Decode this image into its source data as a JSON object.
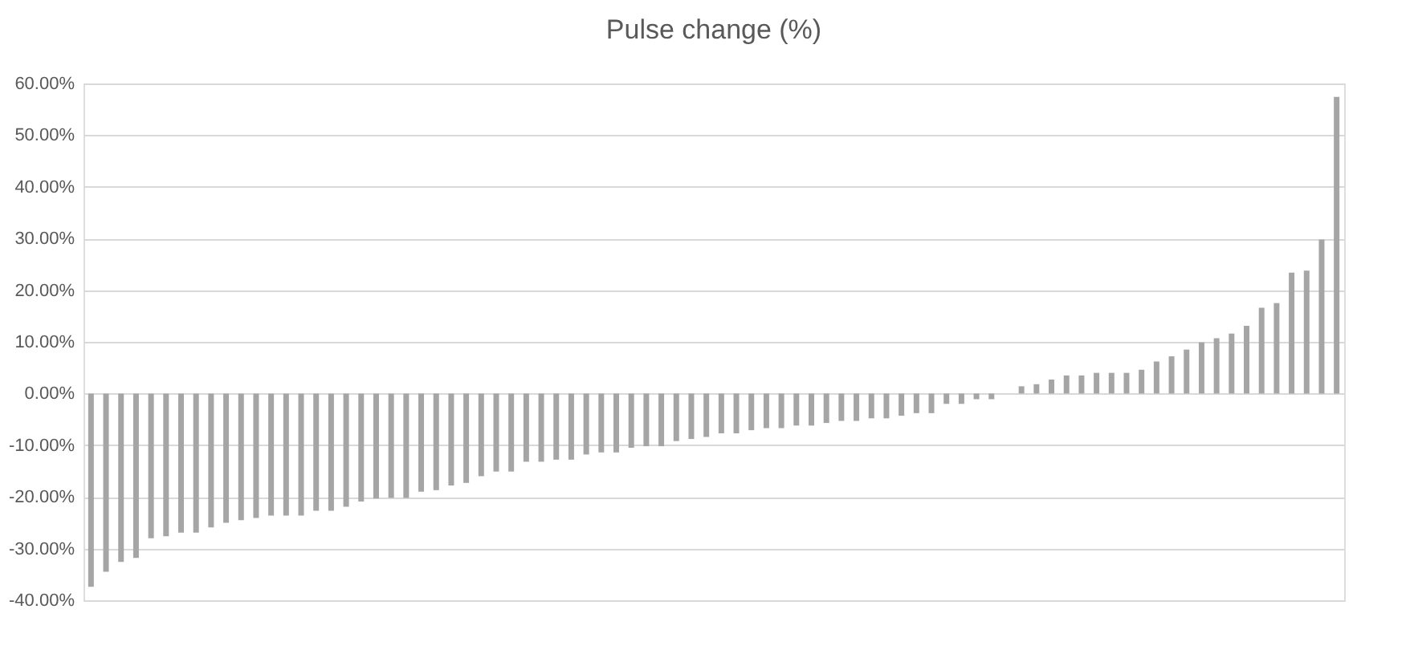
{
  "chart_data": {
    "type": "bar",
    "title": "Pulse change (%)",
    "categories": [
      null,
      null,
      null,
      null,
      null,
      null,
      null,
      null,
      null,
      null,
      null,
      null,
      null,
      null,
      null,
      null,
      null,
      null,
      null,
      null,
      null,
      null,
      null,
      null,
      null,
      null,
      null,
      null,
      null,
      null,
      null,
      null,
      null,
      null,
      null,
      null,
      null,
      null,
      null,
      null,
      null,
      null,
      null,
      null,
      null,
      null,
      null,
      null,
      null,
      null,
      null,
      null,
      null,
      null,
      null,
      null,
      null,
      null,
      null,
      null,
      null,
      null,
      null,
      null,
      null,
      null,
      null,
      null,
      null,
      null,
      null,
      null,
      null,
      null,
      null,
      null,
      null,
      null,
      null,
      null,
      null,
      null,
      null,
      null
    ],
    "values": [
      -37.4,
      -34.5,
      -32.6,
      -31.8,
      -28,
      -27.6,
      -26.9,
      -26.9,
      -25.9,
      -25,
      -24.5,
      -24.1,
      -23.6,
      -23.6,
      -23.6,
      -22.7,
      -22.7,
      -21.9,
      -20.9,
      -20.3,
      -20.2,
      -20.2,
      -19,
      -18.7,
      -17.8,
      -17.3,
      -16,
      -15.1,
      -15.1,
      -13.2,
      -13.2,
      -12.8,
      -12.8,
      -11.8,
      -11.4,
      -11.4,
      -10.5,
      -10.2,
      -10.2,
      -9.2,
      -8.8,
      -8.4,
      -7.7,
      -7.7,
      -7.1,
      -6.7,
      -6.7,
      -6.2,
      -6.2,
      -5.7,
      -5.3,
      -5.3,
      -4.8,
      -4.8,
      -4.3,
      -3.8,
      -3.8,
      -2,
      -2,
      -1.1,
      -1.1,
      0,
      1.4,
      1.8,
      2.7,
      3.5,
      3.5,
      4,
      4,
      4,
      4.6,
      6.2,
      7.2,
      8.5,
      9.9,
      10.7,
      11.6,
      13.1,
      16.6,
      17.5,
      23.4,
      23.8,
      29.8,
      57.4
    ],
    "color": "#a5a5a5",
    "ylim": [
      -40,
      60
    ],
    "yticks": [
      {
        "value": -40,
        "label": "-40.00%"
      },
      {
        "value": -30,
        "label": "-30.00%"
      },
      {
        "value": -20,
        "label": "-20.00%"
      },
      {
        "value": -10,
        "label": "-10.00%"
      },
      {
        "value": 0,
        "label": "0.00%"
      },
      {
        "value": 10,
        "label": "10.00%"
      },
      {
        "value": 20,
        "label": "20.00%"
      },
      {
        "value": 30,
        "label": "30.00%"
      },
      {
        "value": 40,
        "label": "40.00%"
      },
      {
        "value": 50,
        "label": "50.00%"
      },
      {
        "value": 60,
        "label": "60.00%"
      }
    ],
    "grid": "y",
    "tick_labels": "y"
  }
}
